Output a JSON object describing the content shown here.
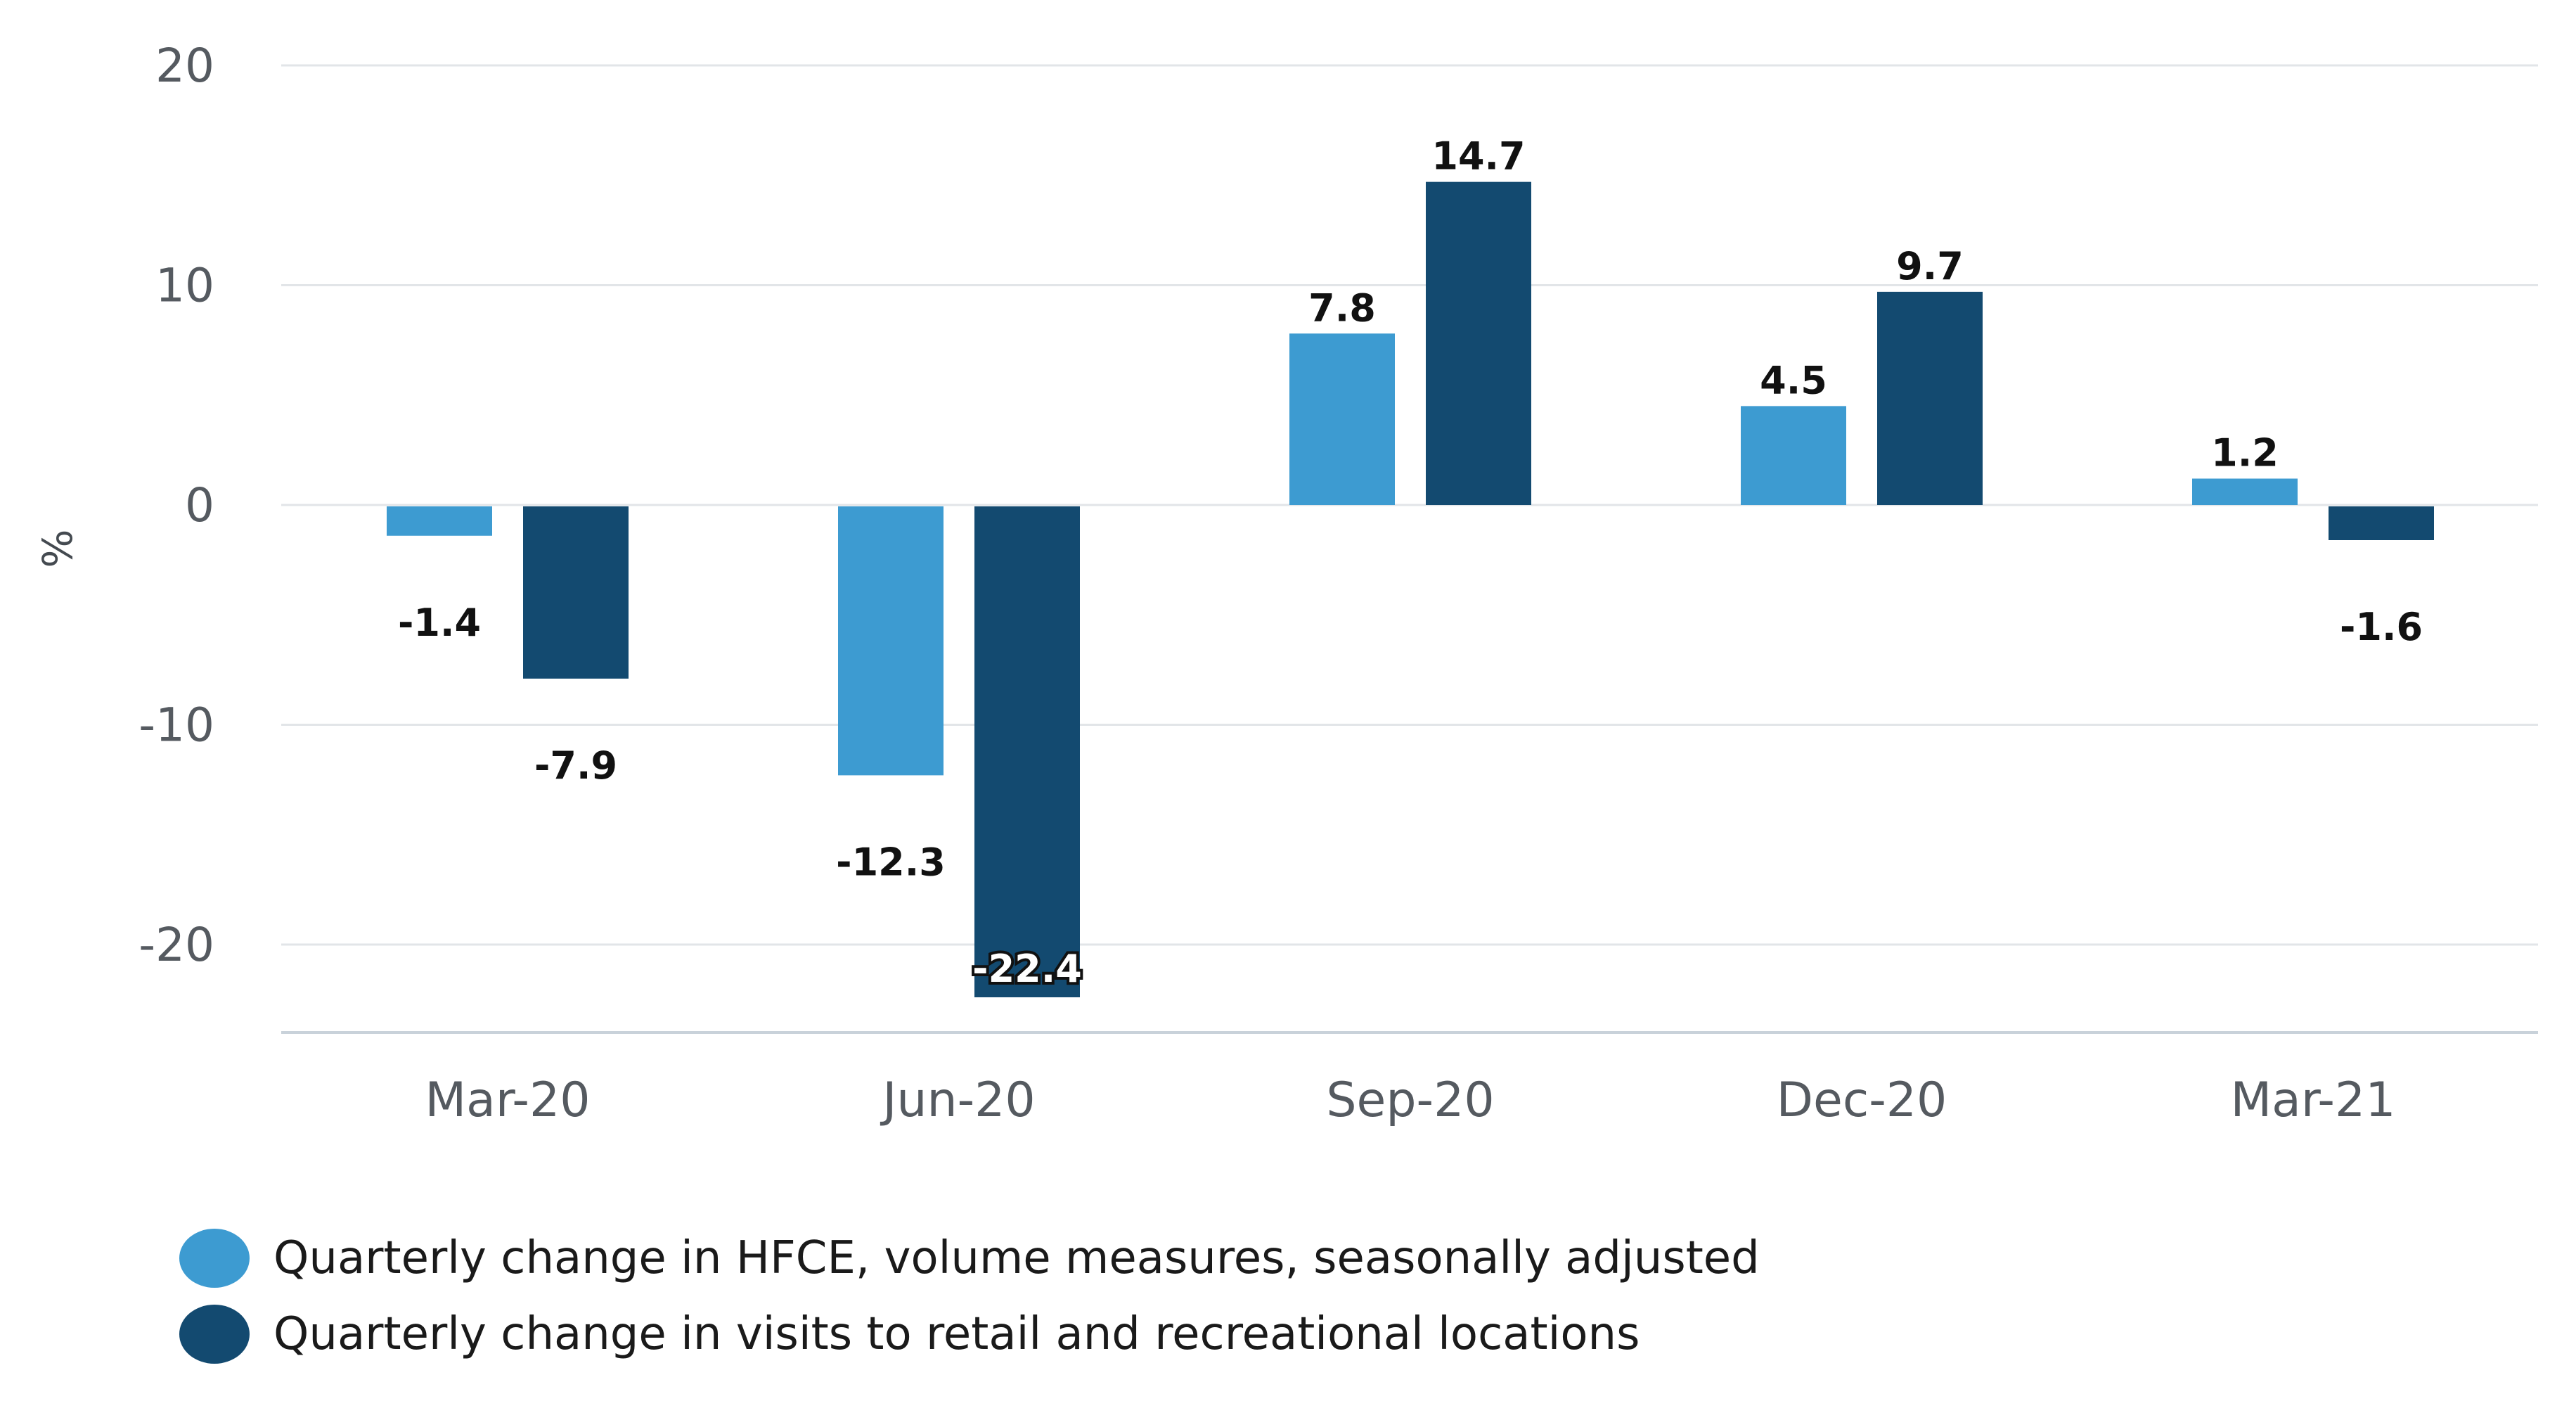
{
  "chart_data": {
    "type": "bar",
    "title": "",
    "xlabel": "",
    "ylabel": "%",
    "ylim": [
      -24,
      20
    ],
    "yticks": [
      20,
      10,
      0,
      -10,
      -20
    ],
    "ytick_labels": [
      "20",
      "10",
      "0",
      "-10",
      "-20"
    ],
    "grid": true,
    "legend_position": "bottom-left",
    "categories": [
      "Mar-20",
      "Jun-20",
      "Sep-20",
      "Dec-20",
      "Mar-21"
    ],
    "series": [
      {
        "name": "Quarterly change in HFCE, volume measures, seasonally adjusted",
        "color": "#3d9bd1",
        "values": [
          -1.4,
          -12.3,
          7.8,
          4.5,
          1.2
        ],
        "labels": [
          "-1.4",
          "-12.3",
          "7.8",
          "4.5",
          "1.2"
        ]
      },
      {
        "name": "Quarterly change in visits to retail and recreational locations",
        "color": "#134a70",
        "values": [
          -7.9,
          -22.4,
          14.7,
          9.7,
          -1.6
        ],
        "labels": [
          "-7.9",
          "-22.4",
          "14.7",
          "9.7",
          "-1.6"
        ]
      }
    ]
  }
}
